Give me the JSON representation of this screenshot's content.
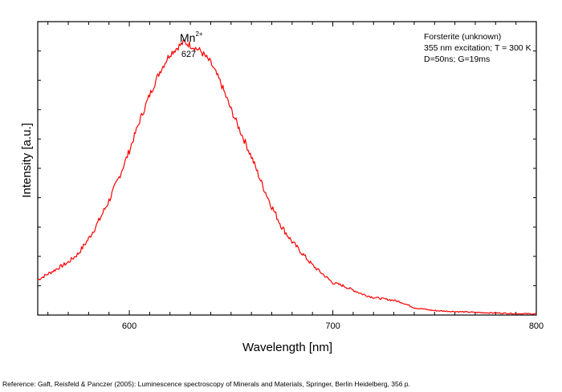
{
  "chart_data": {
    "type": "line",
    "xlabel": "Wavelength [nm]",
    "ylabel": "Intensity [a.u.]",
    "xlim": [
      555,
      800
    ],
    "ylim": [
      0,
      1
    ],
    "x_ticks": [
      600,
      700,
      800
    ],
    "y_ticks_labeled": false,
    "grid": false,
    "legend": {
      "placement": "top-right",
      "lines": [
        "Forsterite (unknown)",
        "355 nm excitation; T = 300 K",
        "D=50ns; G=19ms"
      ]
    },
    "annotations": {
      "ion_base": "Mn",
      "ion_charge": "2+",
      "peak_label": "627"
    },
    "series": [
      {
        "color": "#ff0000",
        "x": [
          555,
          560,
          565,
          570,
          575,
          580,
          585,
          590,
          595,
          600,
          605,
          610,
          615,
          620,
          625,
          627,
          630,
          635,
          640,
          645,
          650,
          655,
          660,
          665,
          670,
          675,
          680,
          685,
          690,
          695,
          700,
          705,
          710,
          715,
          720,
          725,
          730,
          733,
          735,
          740,
          745,
          750,
          760,
          770,
          780,
          790,
          800
        ],
        "y": [
          0.12,
          0.14,
          0.16,
          0.18,
          0.21,
          0.26,
          0.32,
          0.39,
          0.47,
          0.56,
          0.66,
          0.75,
          0.83,
          0.89,
          0.92,
          0.93,
          0.92,
          0.9,
          0.86,
          0.79,
          0.7,
          0.62,
          0.54,
          0.45,
          0.37,
          0.3,
          0.25,
          0.21,
          0.17,
          0.14,
          0.11,
          0.1,
          0.085,
          0.07,
          0.06,
          0.055,
          0.05,
          0.045,
          0.04,
          0.025,
          0.02,
          0.015,
          0.012,
          0.009,
          0.007,
          0.005,
          0.004
        ]
      }
    ]
  },
  "footer": {
    "reference": "Reference: Gaft, Reisfeld & Panczer (2005): Luminescence spectroscopy of Minerals and Materials, Springer, Berlin Heidelberg, 356 p."
  }
}
